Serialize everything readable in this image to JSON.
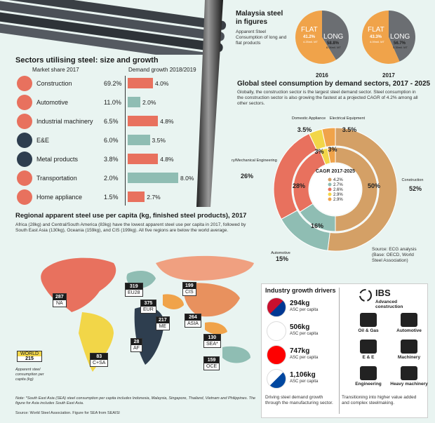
{
  "sectors": {
    "title": "Sectors utilising steel: size and growth",
    "market_share_header": "Market share 2017",
    "demand_growth_header": "Demand growth 2018/2019",
    "items": [
      {
        "name": "Construction",
        "share": "69.2%",
        "growth": "4.0%",
        "icon": "crane-icon"
      },
      {
        "name": "Automotive",
        "share": "11.0%",
        "growth": "2.0%",
        "icon": "car-icon"
      },
      {
        "name": "Industrial machinery",
        "share": "6.5%",
        "growth": "4.8%",
        "icon": "gear-icon"
      },
      {
        "name": "E&E",
        "share": "6.0%",
        "growth": "3.5%",
        "icon": "plug-icon"
      },
      {
        "name": "Metal products",
        "share": "3.8%",
        "growth": "4.8%",
        "icon": "barrel-icon"
      },
      {
        "name": "Transportation",
        "share": "2.0%",
        "growth": "8.0%",
        "icon": "ship-icon"
      },
      {
        "name": "Home appliance",
        "share": "1.5%",
        "growth": "2.7%",
        "icon": "fridge-icon"
      }
    ]
  },
  "malaysia": {
    "title_line1": "Malaysia steel",
    "title_line2": "in figures",
    "subtitle": "Apparent Steel Consumption of long and flat products",
    "years": [
      {
        "year": "2016",
        "flat_label": "FLAT",
        "flat_pct": "41.2%",
        "flat_mt": "4.25mil. MT",
        "long_label": "LONG",
        "long_pct": "58.8%",
        "long_mt": "6.06mil. MT"
      },
      {
        "year": "2017",
        "flat_label": "FLAT",
        "flat_pct": "43.3%",
        "flat_mt": "4.09mil. MT",
        "long_label": "LONG",
        "long_pct": "56.7%",
        "long_mt": "5.35mil. MT"
      }
    ]
  },
  "global": {
    "title": "Global steel consumption by demand sectors, 2017 - 2025",
    "body": "Globally, the construction sector is the largest steel demand sector. Steel consumption in the construction sector is also growing the fastest at a projected CAGR of 4.2% among all other sectors.",
    "cagr_title": "CAGR 2017-2025",
    "cagr_values": [
      "4.2%",
      "2.7%",
      "2.6%",
      "2.9%",
      "2.9%"
    ],
    "source": "Source: ECG analysis (Base: OECD, World Steel Association)",
    "outer_labels": [
      {
        "name": "Construction",
        "value": "52%"
      },
      {
        "name": "Automotive",
        "value": "15%"
      },
      {
        "name": "Machinery/Mechanical Engineering",
        "value": "26%"
      },
      {
        "name": "Domestic Appliance",
        "value": "3.5%"
      },
      {
        "name": "Electrical Equipment",
        "value": "3.5%"
      }
    ],
    "inner_labels": [
      "50%",
      "16%",
      "28%",
      "3%",
      "3%"
    ]
  },
  "chart_data": [
    {
      "type": "bar",
      "title": "Sectors utilising steel: size and growth",
      "categories": [
        "Construction",
        "Automotive",
        "Industrial machinery",
        "E&E",
        "Metal products",
        "Transportation",
        "Home appliance"
      ],
      "series": [
        {
          "name": "Market share 2017",
          "values": [
            69.2,
            11.0,
            6.5,
            6.0,
            3.8,
            2.0,
            1.5
          ]
        },
        {
          "name": "Demand growth 2018/2019",
          "values": [
            4.0,
            2.0,
            4.8,
            3.5,
            4.8,
            8.0,
            2.7
          ]
        }
      ]
    },
    {
      "type": "pie",
      "title": "Malaysia steel in figures",
      "categories": [
        "FLAT",
        "LONG"
      ],
      "series": [
        {
          "name": "2016",
          "values": [
            41.2,
            58.8
          ]
        },
        {
          "name": "2017",
          "values": [
            43.3,
            56.7
          ]
        }
      ]
    },
    {
      "type": "pie",
      "title": "Global steel consumption by demand sectors, 2017 - 2025",
      "categories": [
        "Construction",
        "Automotive",
        "Machinery/Mechanical Engineering",
        "Domestic Appliance",
        "Electrical Equipment"
      ],
      "series": [
        {
          "name": "outer",
          "values": [
            52,
            15,
            26,
            3.5,
            3.5
          ]
        },
        {
          "name": "inner",
          "values": [
            50,
            16,
            28,
            3,
            3
          ]
        }
      ],
      "cagr": [
        4.2,
        2.7,
        2.6,
        2.9,
        2.9
      ],
      "colors": [
        "#d4a066",
        "#8fbdb3",
        "#e8715e",
        "#f2d648",
        "#f0a34a"
      ]
    },
    {
      "type": "bar",
      "title": "Regional apparent steel use per capita (kg, finished steel products), 2017",
      "categories": [
        "NA",
        "C+SA",
        "EU28",
        "EUR",
        "ME",
        "AF",
        "CIS",
        "ASIA",
        "SEA*",
        "OCE",
        "WORLD"
      ],
      "values": [
        287,
        83,
        319,
        375,
        217,
        28,
        199,
        264,
        130,
        159,
        215
      ]
    }
  ],
  "regional": {
    "title": "Regional apparent steel use per capita (kg, finished steel products), 2017",
    "body": "Africa (28kg) and Central/South America (83kg) have the lowest apparent steel use per capita in 2017, followed by South East Asia (130kg), Oceania (159kg), and CIS (199kg). All five regions are below the world average.",
    "world_label": "WORLD",
    "world_value": "215",
    "world_caption": "Apparent steel consumption per capita (kg)",
    "note": "Note: *South East Asia (SEA) steel consumption per capita includes Indonesia, Malaysia, Singapore, Thailand, Vietnam and Philippines. The figure for Asia includes South East Asia.",
    "source": "Source: World Steel Association. Figure for SEA from SEAISI",
    "regions": [
      {
        "name": "NA",
        "value": "287"
      },
      {
        "name": "C+SA",
        "value": "83"
      },
      {
        "name": "EU28",
        "value": "319"
      },
      {
        "name": "EUR",
        "value": "375"
      },
      {
        "name": "ME",
        "value": "217"
      },
      {
        "name": "AF",
        "value": "28"
      },
      {
        "name": "CIS",
        "value": "199"
      },
      {
        "name": "ASIA",
        "value": "264"
      },
      {
        "name": "SEA*",
        "value": "130"
      },
      {
        "name": "OCE",
        "value": "159"
      }
    ]
  },
  "drivers": {
    "title": "Industry growth drivers",
    "countries": [
      {
        "kg": "294kg",
        "sub": "ASC per capita",
        "flag": "malaysia-flag-icon"
      },
      {
        "kg": "506kg",
        "sub": "ASC per capita",
        "flag": "japan-flag-icon"
      },
      {
        "kg": "747kg",
        "sub": "ASC per capita",
        "flag": "taiwan-flag-icon"
      },
      {
        "kg": "1,106kg",
        "sub": "ASC per capita",
        "flag": "korea-flag-icon"
      }
    ],
    "left_caption": "Driving steel demand growth through the manufacturing sector.",
    "ibs_title": "IBS",
    "ibs_sub": "Advanced construction",
    "industries": [
      "Oil & Gas",
      "Automotive",
      "E & E",
      "Machinery",
      "Engineering",
      "Heavy machinery"
    ],
    "right_caption": "Transitioning into higher value added and complex steelmaking."
  }
}
